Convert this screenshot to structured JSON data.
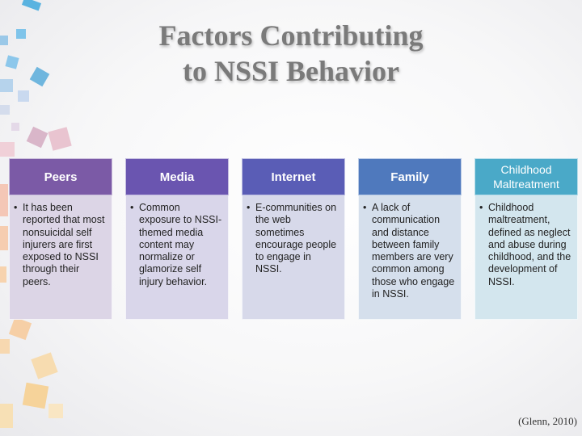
{
  "slide": {
    "title_line1": "Factors Contributing",
    "title_line2": "to NSSI Behavior",
    "citation": "(Glenn,  2010)"
  },
  "columns": [
    {
      "heading": "Peers",
      "text": "It has been reported that most nonsuicidal self injurers are first exposed to NSSI through their peers.",
      "head_color": "#7b5aa6",
      "body_color": "#dcd5e6"
    },
    {
      "heading": "Media",
      "text": "Common exposure to NSSI-themed media content may normalize or glamorize self injury behavior.",
      "head_color": "#6a55b0",
      "body_color": "#d9d6ea"
    },
    {
      "heading": "Internet",
      "text": "E-communities on the web sometimes encourage people to engage in NSSI.",
      "head_color": "#5a5db6",
      "body_color": "#d7d9ea"
    },
    {
      "heading": "Family",
      "text": "A lack of communication and distance between family members are very common among those who engage in NSSI.",
      "head_color": "#4f79bd",
      "body_color": "#d5dfec"
    },
    {
      "heading": "Childhood Maltreatment",
      "text": "Childhood maltreatment, defined as neglect and abuse during childhood, and the development of NSSI.",
      "head_color": "#4aa9c8",
      "body_color": "#d3e6ee"
    }
  ],
  "bullet_char": "•"
}
